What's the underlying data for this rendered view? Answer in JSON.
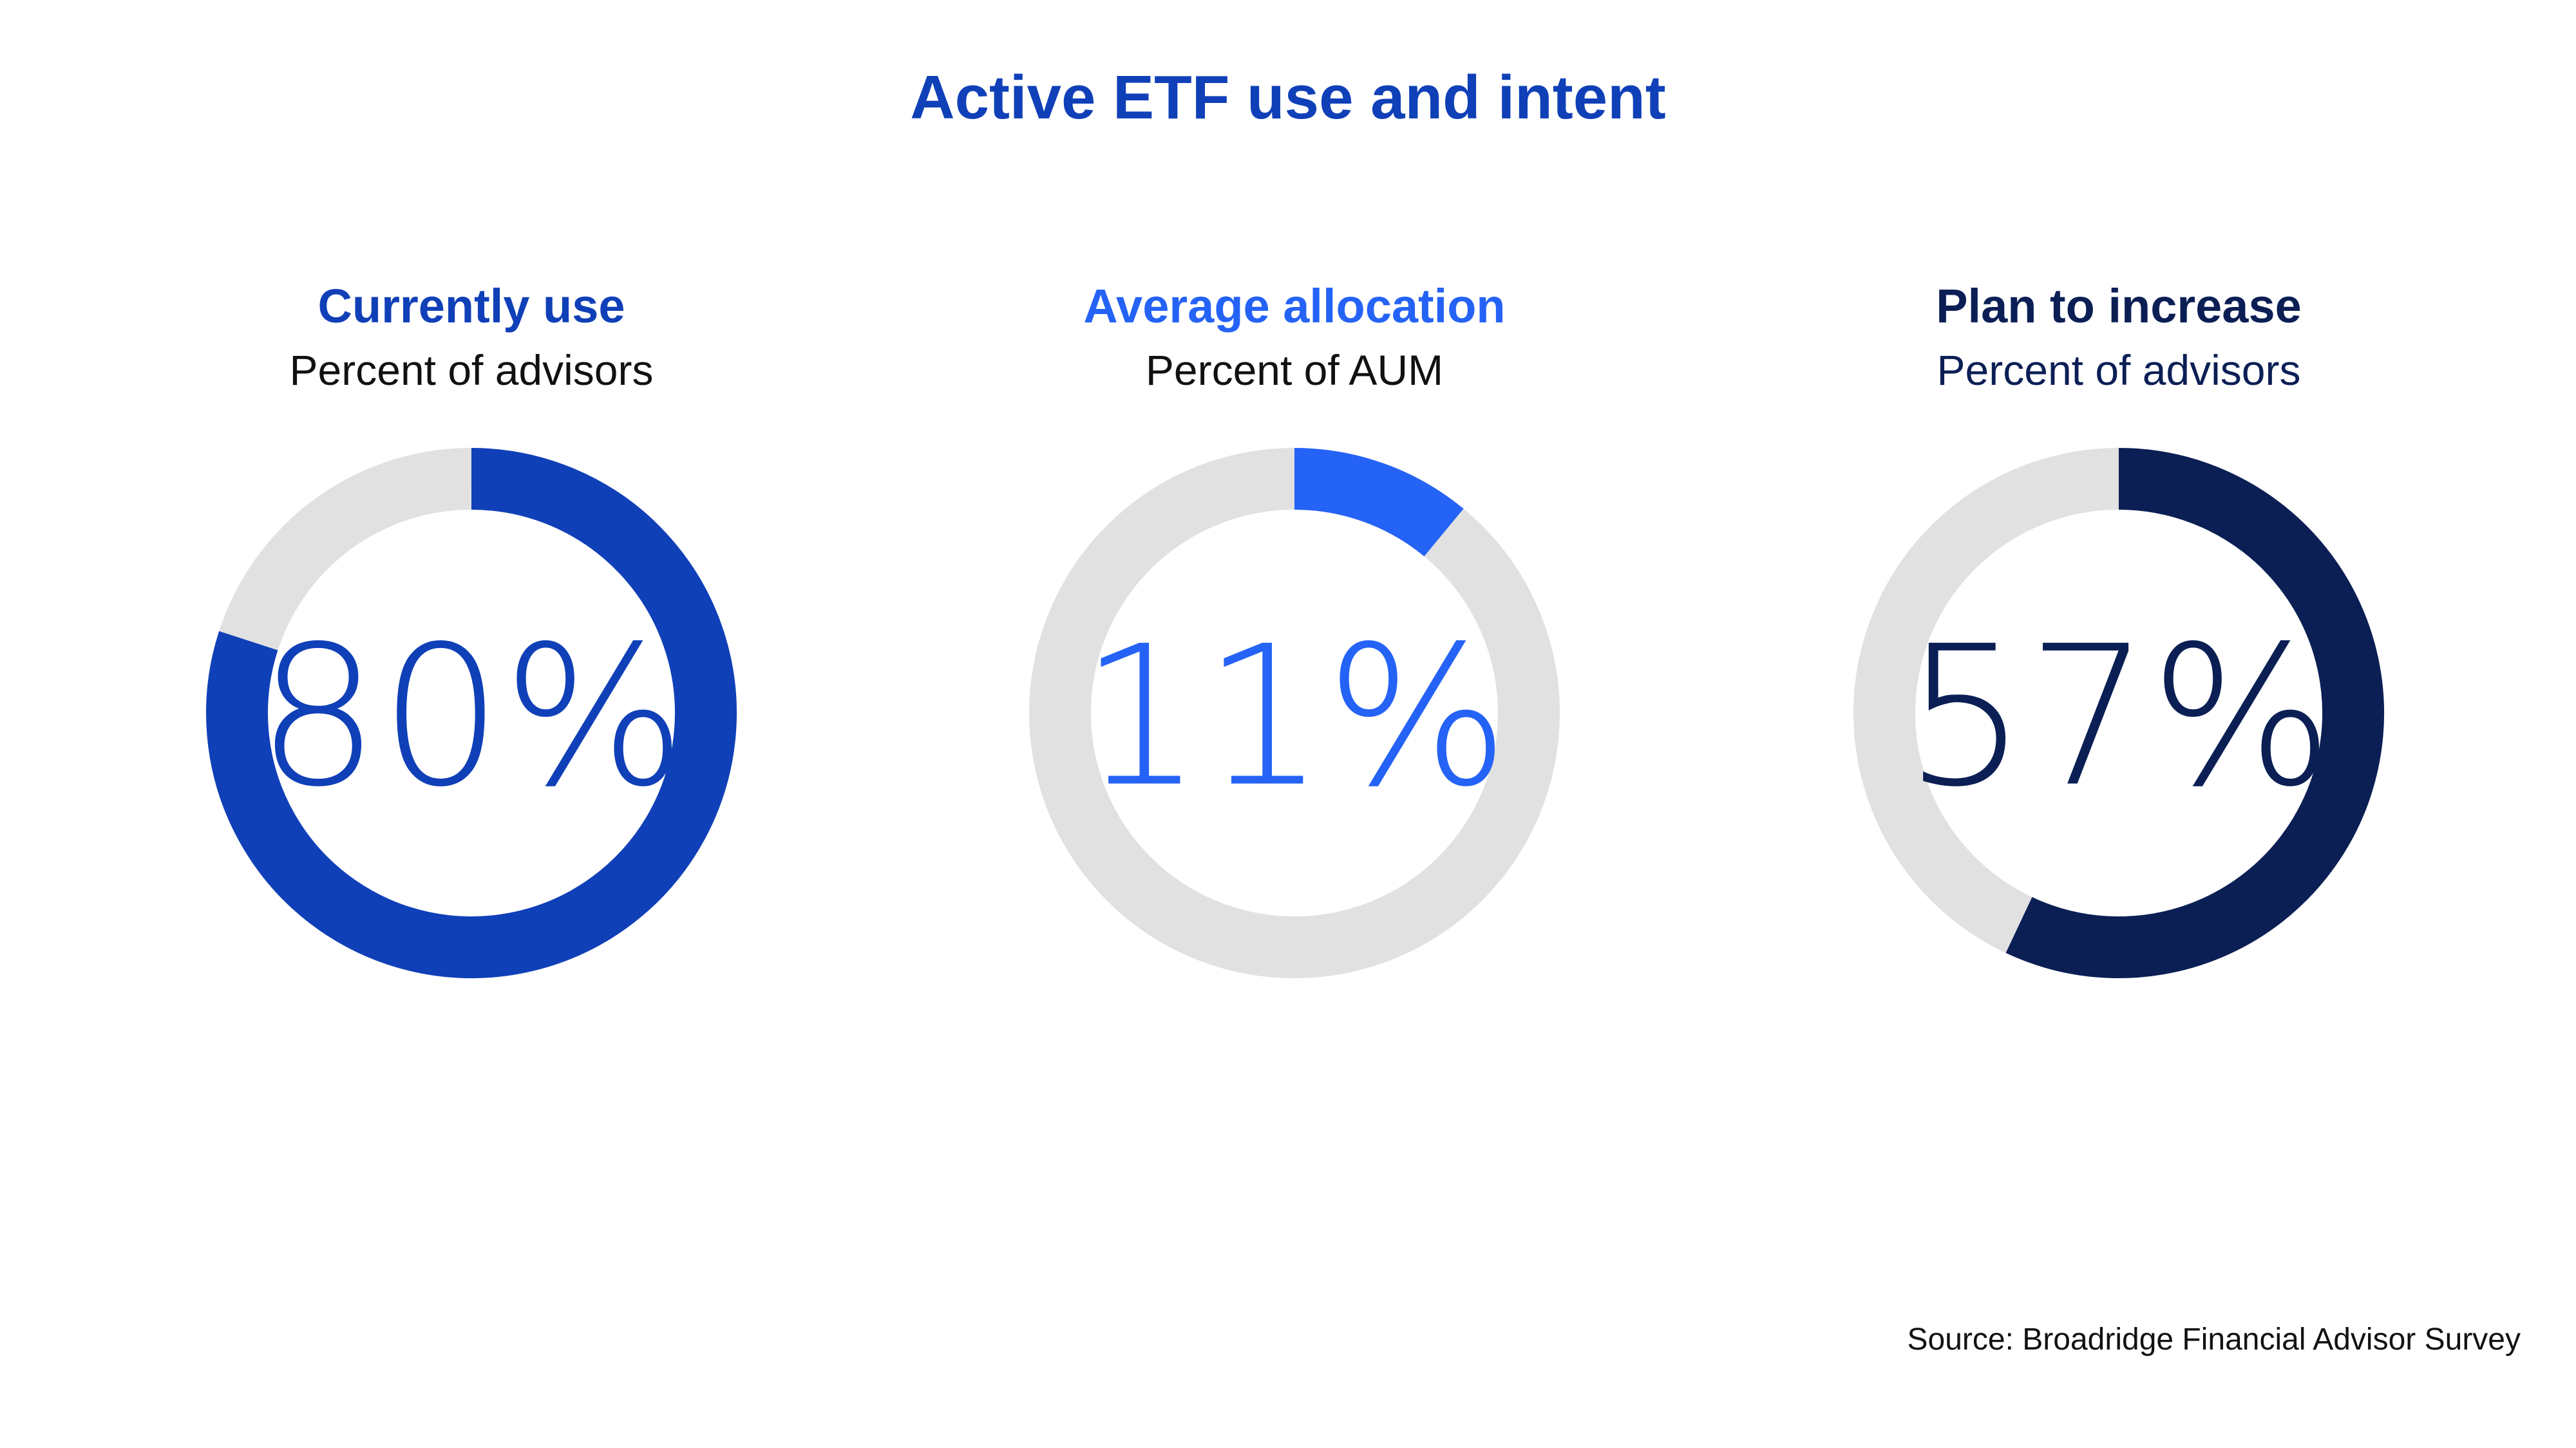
{
  "title": "Active ETF use and intent",
  "source": "Source: Broadridge Financial Advisor Survey",
  "colors": {
    "track": "#E1E1E1",
    "title": "#1040B8"
  },
  "chart_data": [
    {
      "type": "pie",
      "title": "Currently use",
      "subtitle": "Percent of advisors",
      "value": 80,
      "value_label": "80%",
      "unit": "%",
      "color": "#1040B8",
      "title_color": "#1040B8",
      "subtitle_color": "#111111"
    },
    {
      "type": "pie",
      "title": "Average allocation",
      "subtitle": "Percent of AUM",
      "value": 11,
      "value_label": "11%",
      "unit": "%",
      "color": "#2563F6",
      "title_color": "#2563F6",
      "subtitle_color": "#111111"
    },
    {
      "type": "pie",
      "title": "Plan to increase",
      "subtitle": "Percent of advisors",
      "value": 57,
      "value_label": "57%",
      "unit": "%",
      "color": "#0B1F55",
      "title_color": "#0B1F55",
      "subtitle_color": "#0B1F55"
    }
  ]
}
